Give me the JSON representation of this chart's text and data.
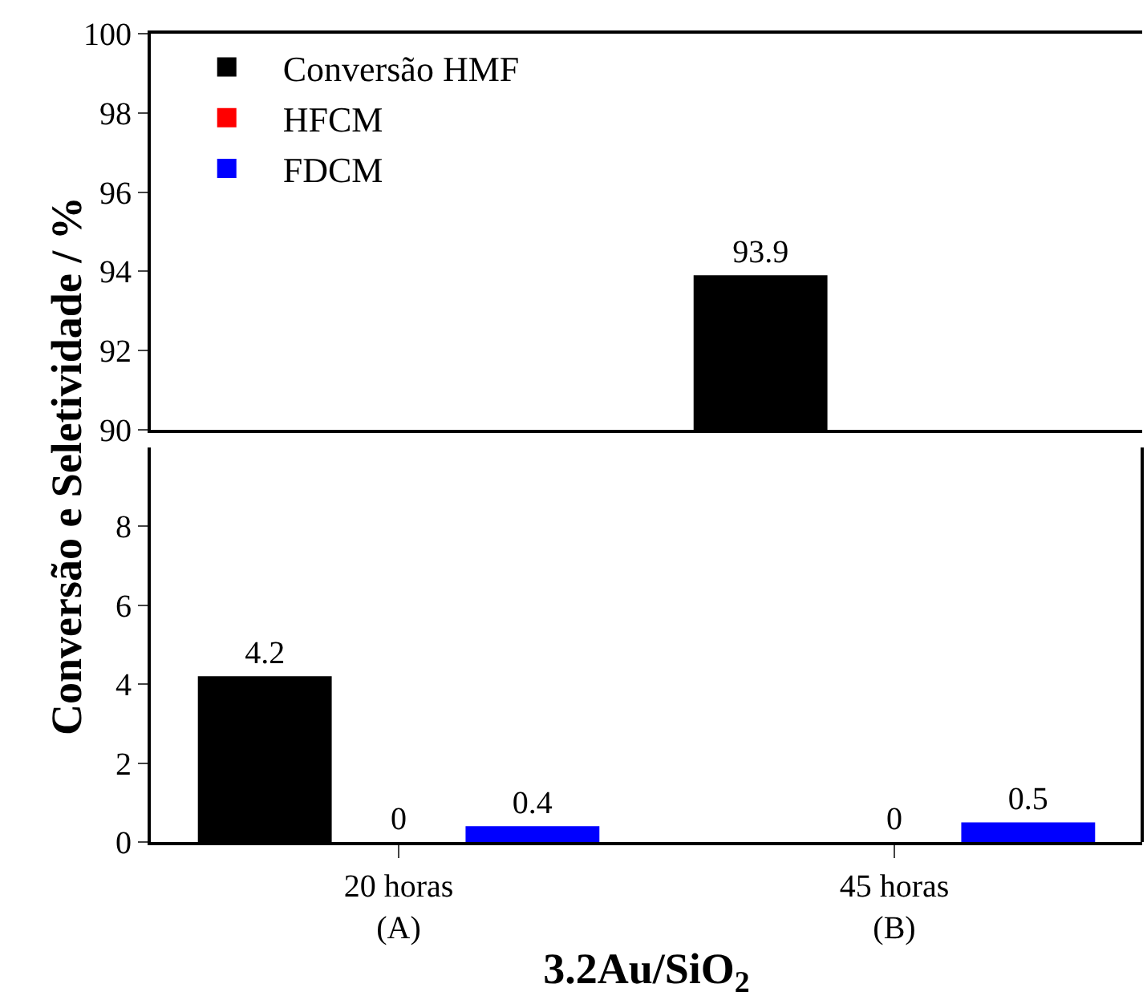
{
  "chart_data": [
    {
      "type": "bar",
      "series": [
        {
          "name": "Conversão HMF",
          "color": "#000000",
          "values": [
            null,
            93.9
          ],
          "value_labels": [
            null,
            "93.9"
          ]
        },
        {
          "name": "HFCM",
          "color": "#ff0000",
          "values": [
            null,
            null
          ]
        },
        {
          "name": "FDCM",
          "color": "#0000ff",
          "values": [
            null,
            null
          ]
        }
      ],
      "ylim": [
        90,
        100
      ],
      "yticks": [
        90,
        92,
        94,
        96,
        98,
        100
      ],
      "tick_labels": "y",
      "legend": "top left",
      "grid": false
    },
    {
      "type": "bar",
      "categories": [
        "20 horas\n(A)",
        "45 horas\n(B)"
      ],
      "series": [
        {
          "color": "#000000",
          "values": [
            4.2,
            null
          ],
          "value_labels": [
            "4.2",
            null
          ]
        },
        {
          "color": "#ff0000",
          "values": [
            0,
            0
          ],
          "value_labels": [
            "0",
            "0"
          ]
        },
        {
          "color": "#0000ff",
          "values": [
            0.4,
            0.5
          ],
          "value_labels": [
            "0.4",
            "0.5"
          ]
        }
      ],
      "ylim": [
        0,
        10
      ],
      "yticks": [
        0,
        2,
        4,
        6,
        8
      ],
      "xlabel": "3.2Au/SiO$_{2}$",
      "ylabel": "Conversão e Seletividade / %",
      "grid": false
    }
  ]
}
